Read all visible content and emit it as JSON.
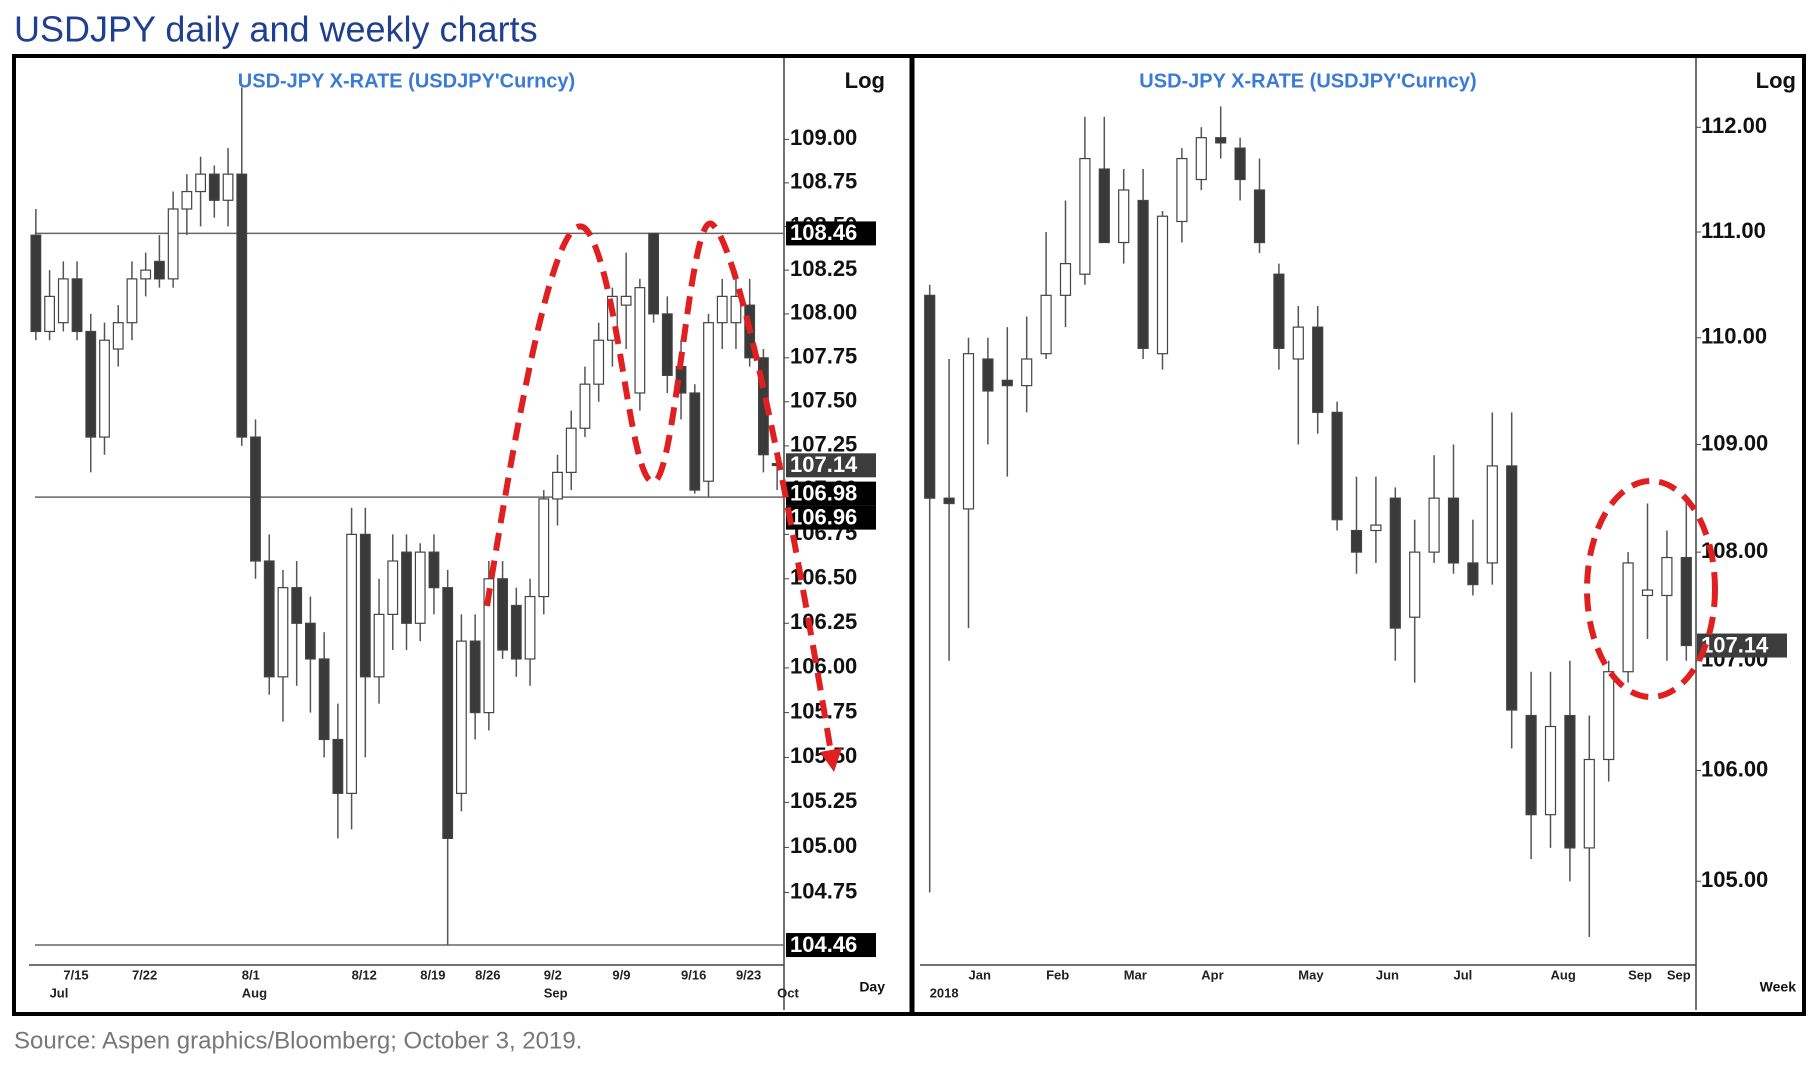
{
  "title": "USDJPY daily and weekly charts",
  "source": "Source: Aspen graphics/Bloomberg; October 3, 2019.",
  "chart_data": [
    {
      "type": "candlestick",
      "title": "USD-JPY  X-RATE  (USDJPY'Curncy)",
      "scale_label": "Log",
      "period_label": "Day",
      "log": true,
      "categories": [
        null,
        null,
        "7/15",
        null,
        null,
        null,
        null,
        "7/22",
        null,
        null,
        null,
        null,
        null,
        null,
        null,
        "8/1",
        null,
        null,
        null,
        null,
        null,
        null,
        null,
        "8/12",
        null,
        null,
        null,
        null,
        "8/19",
        null,
        null,
        null,
        "8/26",
        null,
        null,
        null,
        null,
        "9/2",
        null,
        null,
        null,
        null,
        "9/9",
        null,
        null,
        null,
        null,
        "9/16",
        null,
        null,
        null,
        "9/23",
        null,
        null,
        null
      ],
      "sublabels": [
        null,
        "Jul",
        null,
        null,
        null,
        null,
        null,
        null,
        null,
        null,
        null,
        null,
        null,
        null,
        null,
        "Aug",
        null,
        null,
        null,
        null,
        null,
        null,
        null,
        null,
        null,
        null,
        null,
        null,
        null,
        null,
        null,
        null,
        null,
        null,
        null,
        null,
        null,
        "Sep",
        null,
        null,
        null,
        null,
        null,
        null,
        null,
        null,
        null,
        null,
        null,
        null,
        null,
        null,
        null,
        null,
        "Oct"
      ],
      "open": [
        108.45,
        107.9,
        107.95,
        108.2,
        107.9,
        107.3,
        107.8,
        107.95,
        108.2,
        108.3,
        108.2,
        108.6,
        108.7,
        108.8,
        108.65,
        108.8,
        107.3,
        106.6,
        105.95,
        106.45,
        106.25,
        106.05,
        105.6,
        105.3,
        106.75,
        105.95,
        106.3,
        106.65,
        106.25,
        106.65,
        106.45,
        105.3,
        106.15,
        105.75,
        106.5,
        106.35,
        106.05,
        106.4,
        106.95,
        107.1,
        107.35,
        107.6,
        107.85,
        108.05,
        107.55,
        108.46,
        108.0,
        107.7,
        107.55,
        107.05,
        107.95,
        107.95,
        108.05,
        107.75,
        107.15
      ],
      "high": [
        108.6,
        108.25,
        108.3,
        108.3,
        108.0,
        107.95,
        108.05,
        108.3,
        108.35,
        108.45,
        108.7,
        108.8,
        108.9,
        108.85,
        108.95,
        109.3,
        107.4,
        106.75,
        106.55,
        106.6,
        106.4,
        106.2,
        105.8,
        106.9,
        106.9,
        106.5,
        106.75,
        106.75,
        106.7,
        106.75,
        106.55,
        106.3,
        106.3,
        106.6,
        106.6,
        106.45,
        106.5,
        107.0,
        107.2,
        107.45,
        107.7,
        107.95,
        108.15,
        108.35,
        108.2,
        108.46,
        108.1,
        107.85,
        107.6,
        108.0,
        108.2,
        108.25,
        108.2,
        107.8,
        107.2
      ],
      "low": [
        107.85,
        107.85,
        107.9,
        107.85,
        107.1,
        107.2,
        107.7,
        107.85,
        108.1,
        108.15,
        108.15,
        108.45,
        108.5,
        108.55,
        108.5,
        107.25,
        106.5,
        105.85,
        105.7,
        105.9,
        105.75,
        105.5,
        105.05,
        105.1,
        105.5,
        105.8,
        106.1,
        106.1,
        106.15,
        106.3,
        104.46,
        105.2,
        105.6,
        105.65,
        106.05,
        105.95,
        105.9,
        106.3,
        106.8,
        107.0,
        107.3,
        107.5,
        107.7,
        107.8,
        107.45,
        107.95,
        107.55,
        107.4,
        106.98,
        106.96,
        107.8,
        107.8,
        107.7,
        107.1,
        107.0
      ],
      "close": [
        107.9,
        108.1,
        108.2,
        107.9,
        107.3,
        107.85,
        107.95,
        108.2,
        108.25,
        108.2,
        108.6,
        108.7,
        108.8,
        108.65,
        108.8,
        107.3,
        106.6,
        105.95,
        106.45,
        106.25,
        106.05,
        105.6,
        105.3,
        106.75,
        105.95,
        106.3,
        106.6,
        106.25,
        106.65,
        106.45,
        105.05,
        106.15,
        105.75,
        106.5,
        106.1,
        106.05,
        106.4,
        106.95,
        107.1,
        107.35,
        107.6,
        107.85,
        108.1,
        108.1,
        108.15,
        108.0,
        107.65,
        107.55,
        107.0,
        107.95,
        108.1,
        108.1,
        107.75,
        107.2,
        107.14
      ],
      "ylim": [
        104.35,
        109.4
      ],
      "yticks": [
        {
          "value": 104.75,
          "label": "104.75"
        },
        {
          "value": 105,
          "label": "105.00"
        },
        {
          "value": 105.25,
          "label": "105.25"
        },
        {
          "value": 105.5,
          "label": "105.50"
        },
        {
          "value": 105.75,
          "label": "105.75"
        },
        {
          "value": 106,
          "label": "106.00"
        },
        {
          "value": 106.25,
          "label": "106.25"
        },
        {
          "value": 106.5,
          "label": "106.50"
        },
        {
          "value": 106.75,
          "label": "106.75"
        },
        {
          "value": 107,
          "label": "107.00"
        },
        {
          "value": 107.25,
          "label": "107.25"
        },
        {
          "value": 107.5,
          "label": "107.50"
        },
        {
          "value": 107.75,
          "label": "107.75"
        },
        {
          "value": 108,
          "label": "108.00"
        },
        {
          "value": 108.25,
          "label": "108.25"
        },
        {
          "value": 108.5,
          "label": "108.50"
        },
        {
          "value": 108.75,
          "label": "108.75"
        },
        {
          "value": 109,
          "label": "109.00"
        }
      ],
      "levels": [
        {
          "value": 108.46,
          "line": true
        },
        {
          "value": 107.14,
          "line": false
        },
        {
          "value": 106.98,
          "line": false
        },
        {
          "value": 106.96,
          "line": true
        },
        {
          "value": 104.46,
          "line": true
        }
      ]
    },
    {
      "type": "candlestick",
      "title": "USD-JPY  X-RATE  (USDJPY'Curncy)",
      "scale_label": "Log",
      "period_label": "Week",
      "log": true,
      "categories": [
        null,
        null,
        "Jan",
        null,
        null,
        null,
        "Feb",
        null,
        null,
        null,
        "Mar",
        null,
        null,
        null,
        "Apr",
        null,
        null,
        null,
        null,
        "May",
        null,
        null,
        null,
        "Jun",
        null,
        null,
        null,
        "Jul",
        null,
        null,
        null,
        null,
        "Aug",
        null,
        null,
        null,
        "Sep",
        null,
        "Sep",
        null
      ],
      "sublabels": [
        "2018",
        null,
        null,
        null,
        null,
        null,
        null,
        null,
        null,
        null,
        null,
        null,
        null,
        null,
        null,
        null,
        null,
        null,
        null,
        null,
        null,
        null,
        null,
        null,
        null,
        null,
        null,
        null,
        null,
        null,
        null,
        null,
        null,
        null,
        null,
        null,
        null,
        null,
        null,
        null
      ],
      "open": [
        110.4,
        108.5,
        108.4,
        109.8,
        109.6,
        109.55,
        109.85,
        110.4,
        110.6,
        111.6,
        110.9,
        111.3,
        109.85,
        111.1,
        111.5,
        111.9,
        111.8,
        111.4,
        110.6,
        109.8,
        110.1,
        109.3,
        108.2,
        108.2,
        108.5,
        107.4,
        108.0,
        108.5,
        107.9,
        107.9,
        108.8,
        106.5,
        105.6,
        106.5,
        105.3,
        106.1,
        106.9,
        107.6,
        107.6,
        107.95
      ],
      "high": [
        110.5,
        109.8,
        110.0,
        110.0,
        110.1,
        110.2,
        111.0,
        111.3,
        112.1,
        112.1,
        111.6,
        111.6,
        111.2,
        111.8,
        112.0,
        112.2,
        111.9,
        111.7,
        110.7,
        110.3,
        110.3,
        109.4,
        108.7,
        108.7,
        108.6,
        108.3,
        108.9,
        109.0,
        108.3,
        109.3,
        109.3,
        106.9,
        106.9,
        107.0,
        106.5,
        107.0,
        108.0,
        108.45,
        108.2,
        108.5
      ],
      "low": [
        104.9,
        107.0,
        107.3,
        109.0,
        108.7,
        109.3,
        109.8,
        110.1,
        110.5,
        110.9,
        110.7,
        109.8,
        109.7,
        110.9,
        111.4,
        111.7,
        111.3,
        110.8,
        109.7,
        109.0,
        109.1,
        108.2,
        107.8,
        107.9,
        107.0,
        106.8,
        107.9,
        107.8,
        107.6,
        107.7,
        106.2,
        105.2,
        105.3,
        105.0,
        104.5,
        105.9,
        106.8,
        107.2,
        107.0,
        107.0
      ],
      "close": [
        108.5,
        108.45,
        109.85,
        109.5,
        109.55,
        109.8,
        110.4,
        110.7,
        111.7,
        110.9,
        111.4,
        109.9,
        111.15,
        111.7,
        111.9,
        111.85,
        111.5,
        110.9,
        109.9,
        110.1,
        109.3,
        108.3,
        108.0,
        108.25,
        107.3,
        108.0,
        108.5,
        107.9,
        107.7,
        108.8,
        106.55,
        105.6,
        106.4,
        105.3,
        106.1,
        106.9,
        107.9,
        107.65,
        107.95,
        107.14
      ],
      "ylim": [
        104.25,
        112.55
      ],
      "yticks": [
        {
          "value": 105,
          "label": "105.00"
        },
        {
          "value": 106,
          "label": "106.00"
        },
        {
          "value": 107,
          "label": "107.00"
        },
        {
          "value": 108,
          "label": "108.00"
        },
        {
          "value": 109,
          "label": "109.00"
        },
        {
          "value": 110,
          "label": "110.00"
        },
        {
          "value": 111,
          "label": "111.00"
        },
        {
          "value": 112,
          "label": "112.00"
        }
      ],
      "levels": [
        {
          "value": 107.14,
          "line": false
        }
      ]
    }
  ]
}
